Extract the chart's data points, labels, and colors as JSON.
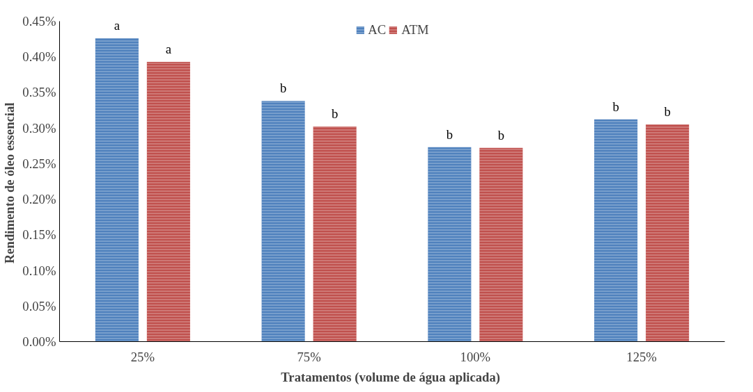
{
  "chart_data": {
    "type": "bar",
    "xlabel": "Tratamentos  (volume de água aplicada)",
    "ylabel": "Rendimento  de óleo essencial",
    "categories": [
      "25%",
      "75%",
      "100%",
      "125%"
    ],
    "series": [
      {
        "name": "AC",
        "color": "#4f81bd",
        "values": [
          0.426,
          0.338,
          0.273,
          0.312
        ],
        "value_labels": [
          "a",
          "b",
          "b",
          "b"
        ]
      },
      {
        "name": "ATM",
        "color": "#c0504d",
        "values": [
          0.393,
          0.302,
          0.272,
          0.305
        ],
        "value_labels": [
          "a",
          "b",
          "b",
          "b"
        ]
      }
    ],
    "ylim": [
      0,
      0.45
    ],
    "yticks": [
      {
        "value": 0,
        "label": "0.00%"
      },
      {
        "value": 0.05,
        "label": "0.05%"
      },
      {
        "value": 0.1,
        "label": "0.10%"
      },
      {
        "value": 0.15,
        "label": "0.15%"
      },
      {
        "value": 0.2,
        "label": "0.20%"
      },
      {
        "value": 0.25,
        "label": "0.25%"
      },
      {
        "value": 0.3,
        "label": "0.30%"
      },
      {
        "value": 0.35,
        "label": "0.35%"
      },
      {
        "value": 0.4,
        "label": "0.40%"
      },
      {
        "value": 0.45,
        "label": "0.45%"
      }
    ],
    "grid": false,
    "legend": "top"
  }
}
